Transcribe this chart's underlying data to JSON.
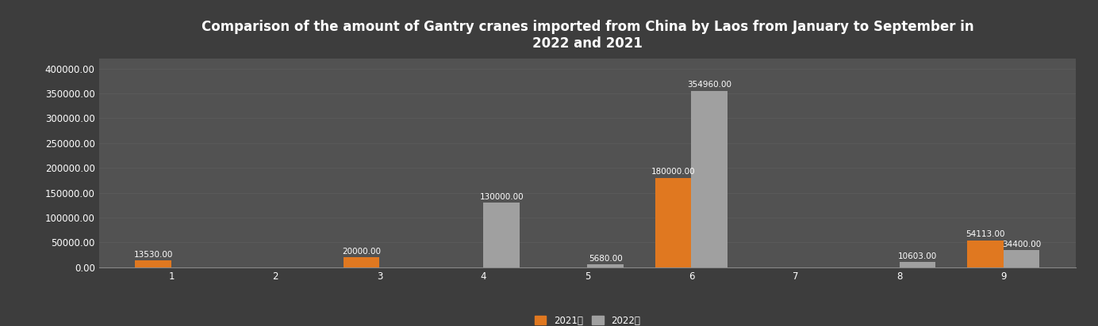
{
  "title": "Comparison of the amount of Gantry cranes imported from China by Laos from January to September in\n2022 and 2021",
  "categories": [
    1,
    2,
    3,
    4,
    5,
    6,
    7,
    8,
    9
  ],
  "values_2021": [
    13530.0,
    0,
    20000.0,
    0,
    0,
    180000.0,
    0,
    0,
    54113.0
  ],
  "values_2022": [
    0,
    0,
    0,
    130000.0,
    5680.0,
    354960.0,
    0,
    10603.0,
    34400.0
  ],
  "bar_color_2021": "#E07820",
  "bar_color_2022": "#A0A0A0",
  "fig_background_color": "#3d3d3d",
  "plot_bg_color": "#525252",
  "text_color": "#ffffff",
  "grid_color": "#5a5a5a",
  "ylim": [
    0,
    420000
  ],
  "yticks": [
    0,
    50000,
    100000,
    150000,
    200000,
    250000,
    300000,
    350000,
    400000
  ],
  "legend_labels": [
    "2021年",
    "2022年"
  ],
  "bar_width": 0.35,
  "label_fontsize": 7.5,
  "title_fontsize": 12,
  "tick_fontsize": 8.5,
  "legend_fontsize": 8.5
}
